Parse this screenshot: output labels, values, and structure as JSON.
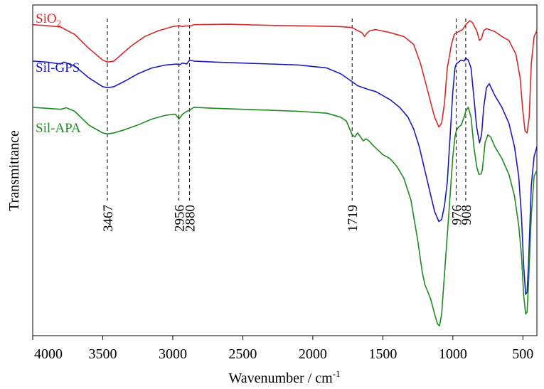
{
  "chart_data": {
    "type": "line",
    "title": "",
    "xlabel": "Wavenumber / cm",
    "xlabel_superscript": "-1",
    "ylabel": "Transmittance",
    "xlim": [
      4000,
      400
    ],
    "xticks": [
      4000,
      3500,
      3000,
      2500,
      2000,
      1500,
      1000,
      500
    ],
    "yticks": [],
    "grid": false,
    "legend": "inline",
    "series": [
      {
        "name": "SiO",
        "name_subscript": "2",
        "color": "#d42a2a",
        "points": [
          [
            4000,
            92
          ],
          [
            3900,
            91.5
          ],
          [
            3800,
            90.8
          ],
          [
            3700,
            87
          ],
          [
            3600,
            80
          ],
          [
            3500,
            74
          ],
          [
            3467,
            73
          ],
          [
            3420,
            73.5
          ],
          [
            3380,
            76
          ],
          [
            3300,
            81
          ],
          [
            3200,
            86
          ],
          [
            3100,
            89
          ],
          [
            3000,
            91
          ],
          [
            2956,
            91.5
          ],
          [
            2930,
            91
          ],
          [
            2900,
            91.4
          ],
          [
            2880,
            91.2
          ],
          [
            2850,
            92
          ],
          [
            2600,
            92.2
          ],
          [
            2400,
            91.8
          ],
          [
            2200,
            91.5
          ],
          [
            2000,
            91.3
          ],
          [
            1800,
            91
          ],
          [
            1719,
            90.5
          ],
          [
            1680,
            89
          ],
          [
            1650,
            88
          ],
          [
            1630,
            86
          ],
          [
            1610,
            88
          ],
          [
            1590,
            89
          ],
          [
            1550,
            89.5
          ],
          [
            1450,
            88
          ],
          [
            1350,
            86
          ],
          [
            1280,
            82
          ],
          [
            1230,
            72
          ],
          [
            1200,
            64
          ],
          [
            1160,
            53
          ],
          [
            1130,
            45
          ],
          [
            1100,
            40
          ],
          [
            1080,
            42
          ],
          [
            1060,
            52
          ],
          [
            1040,
            70
          ],
          [
            1010,
            82
          ],
          [
            990,
            87
          ],
          [
            976,
            88
          ],
          [
            960,
            88.3
          ],
          [
            930,
            89.5
          ],
          [
            908,
            92
          ],
          [
            880,
            94
          ],
          [
            860,
            93
          ],
          [
            830,
            89
          ],
          [
            810,
            84
          ],
          [
            795,
            85
          ],
          [
            780,
            89
          ],
          [
            760,
            90
          ],
          [
            700,
            88.5
          ],
          [
            650,
            86
          ],
          [
            600,
            84
          ],
          [
            550,
            77
          ],
          [
            520,
            65
          ],
          [
            500,
            48
          ],
          [
            485,
            38
          ],
          [
            470,
            37
          ],
          [
            455,
            45
          ],
          [
            440,
            72
          ],
          [
            420,
            86
          ],
          [
            400,
            89
          ]
        ]
      },
      {
        "name": "Sil-GPS",
        "color": "#1a1ab8",
        "points": [
          [
            4000,
            73.5
          ],
          [
            3900,
            73
          ],
          [
            3800,
            72
          ],
          [
            3780,
            73
          ],
          [
            3700,
            71
          ],
          [
            3600,
            65
          ],
          [
            3500,
            60.5
          ],
          [
            3467,
            60
          ],
          [
            3420,
            60.5
          ],
          [
            3350,
            63
          ],
          [
            3250,
            67
          ],
          [
            3150,
            70
          ],
          [
            3050,
            71.5
          ],
          [
            2970,
            72
          ],
          [
            2956,
            71.5
          ],
          [
            2930,
            72.5
          ],
          [
            2900,
            72
          ],
          [
            2880,
            74
          ],
          [
            2850,
            73.5
          ],
          [
            2700,
            73
          ],
          [
            2500,
            72.5
          ],
          [
            2300,
            72
          ],
          [
            2100,
            71.5
          ],
          [
            1900,
            70
          ],
          [
            1800,
            67
          ],
          [
            1719,
            63
          ],
          [
            1680,
            61
          ],
          [
            1640,
            60
          ],
          [
            1600,
            59
          ],
          [
            1550,
            58
          ],
          [
            1450,
            54
          ],
          [
            1380,
            50
          ],
          [
            1320,
            45
          ],
          [
            1280,
            39
          ],
          [
            1240,
            30
          ],
          [
            1200,
            18
          ],
          [
            1160,
            6
          ],
          [
            1130,
            -3
          ],
          [
            1100,
            -8
          ],
          [
            1080,
            -7
          ],
          [
            1060,
            0
          ],
          [
            1040,
            12
          ],
          [
            1020,
            35
          ],
          [
            1000,
            58
          ],
          [
            985,
            70
          ],
          [
            976,
            72
          ],
          [
            960,
            73
          ],
          [
            940,
            74
          ],
          [
            920,
            73.5
          ],
          [
            908,
            75
          ],
          [
            890,
            74
          ],
          [
            870,
            70
          ],
          [
            850,
            55
          ],
          [
            830,
            40
          ],
          [
            810,
            32
          ],
          [
            795,
            36
          ],
          [
            780,
            50
          ],
          [
            760,
            60
          ],
          [
            740,
            62
          ],
          [
            700,
            56
          ],
          [
            650,
            50
          ],
          [
            600,
            42
          ],
          [
            560,
            30
          ],
          [
            530,
            15
          ],
          [
            510,
            -5
          ],
          [
            495,
            -30
          ],
          [
            480,
            -45
          ],
          [
            470,
            -44
          ],
          [
            460,
            -30
          ],
          [
            440,
            10
          ],
          [
            420,
            25
          ],
          [
            400,
            30
          ]
        ]
      },
      {
        "name": "Sil-APA",
        "color": "#1f8a1f",
        "points": [
          [
            4000,
            50
          ],
          [
            3900,
            49.5
          ],
          [
            3800,
            49
          ],
          [
            3760,
            49.8
          ],
          [
            3700,
            48
          ],
          [
            3600,
            41
          ],
          [
            3500,
            37
          ],
          [
            3467,
            36.5
          ],
          [
            3420,
            37
          ],
          [
            3350,
            38.5
          ],
          [
            3250,
            41
          ],
          [
            3150,
            44
          ],
          [
            3050,
            46
          ],
          [
            2980,
            46.5
          ],
          [
            2956,
            44
          ],
          [
            2930,
            46.5
          ],
          [
            2900,
            48
          ],
          [
            2880,
            48.5
          ],
          [
            2850,
            50
          ],
          [
            2700,
            49.5
          ],
          [
            2500,
            49
          ],
          [
            2300,
            48.5
          ],
          [
            2100,
            48
          ],
          [
            1900,
            47
          ],
          [
            1800,
            45
          ],
          [
            1760,
            43
          ],
          [
            1719,
            36
          ],
          [
            1700,
            35
          ],
          [
            1680,
            37
          ],
          [
            1660,
            35
          ],
          [
            1640,
            33
          ],
          [
            1620,
            34
          ],
          [
            1600,
            33
          ],
          [
            1560,
            30
          ],
          [
            1500,
            26
          ],
          [
            1450,
            24
          ],
          [
            1400,
            20
          ],
          [
            1350,
            14
          ],
          [
            1300,
            3
          ],
          [
            1250,
            -18
          ],
          [
            1220,
            -33
          ],
          [
            1200,
            -40
          ],
          [
            1160,
            -47
          ],
          [
            1130,
            -55
          ],
          [
            1110,
            -60
          ],
          [
            1095,
            -61
          ],
          [
            1080,
            -55
          ],
          [
            1060,
            -35
          ],
          [
            1040,
            -15
          ],
          [
            1020,
            5
          ],
          [
            1000,
            25
          ],
          [
            985,
            35
          ],
          [
            976,
            38
          ],
          [
            960,
            40
          ],
          [
            940,
            41
          ],
          [
            920,
            45
          ],
          [
            908,
            48
          ],
          [
            890,
            50
          ],
          [
            870,
            45
          ],
          [
            850,
            30
          ],
          [
            830,
            20
          ],
          [
            815,
            16
          ],
          [
            800,
            16
          ],
          [
            790,
            18
          ],
          [
            770,
            32
          ],
          [
            750,
            36
          ],
          [
            730,
            35
          ],
          [
            700,
            30
          ],
          [
            650,
            24
          ],
          [
            600,
            16
          ],
          [
            560,
            5
          ],
          [
            530,
            -10
          ],
          [
            510,
            -25
          ],
          [
            495,
            -45
          ],
          [
            480,
            -55
          ],
          [
            470,
            -54
          ],
          [
            460,
            -40
          ],
          [
            440,
            -5
          ],
          [
            420,
            15
          ],
          [
            400,
            18
          ]
        ]
      }
    ],
    "series_label_positions": [
      "top-left",
      "upper-left",
      "middle-left"
    ],
    "annotations": [
      {
        "label": "3467",
        "x": 3467
      },
      {
        "label": "2956",
        "x": 2956
      },
      {
        "label": "2880",
        "x": 2880
      },
      {
        "label": "1719",
        "x": 1719
      },
      {
        "label": "976",
        "x": 976
      },
      {
        "label": "908",
        "x": 908
      }
    ],
    "ylim": [
      -66,
      102
    ]
  }
}
